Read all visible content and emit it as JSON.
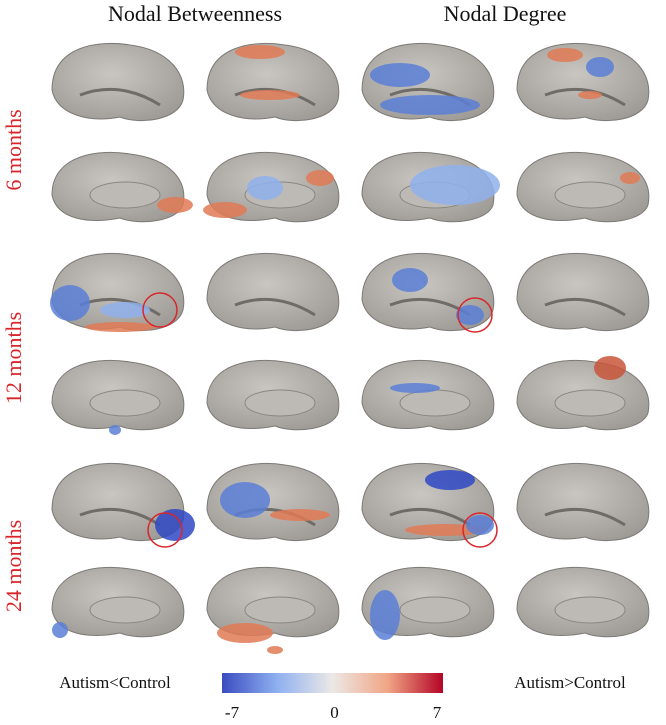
{
  "header": {
    "columns": [
      "Nodal Betweenness",
      "Nodal Degree"
    ]
  },
  "rows": [
    "6 months",
    "12 months",
    "24 months"
  ],
  "colorbar": {
    "left_label": "Autism<Control",
    "right_label": "Autism>Control",
    "ticks": [
      -7,
      0,
      7
    ]
  }
}
